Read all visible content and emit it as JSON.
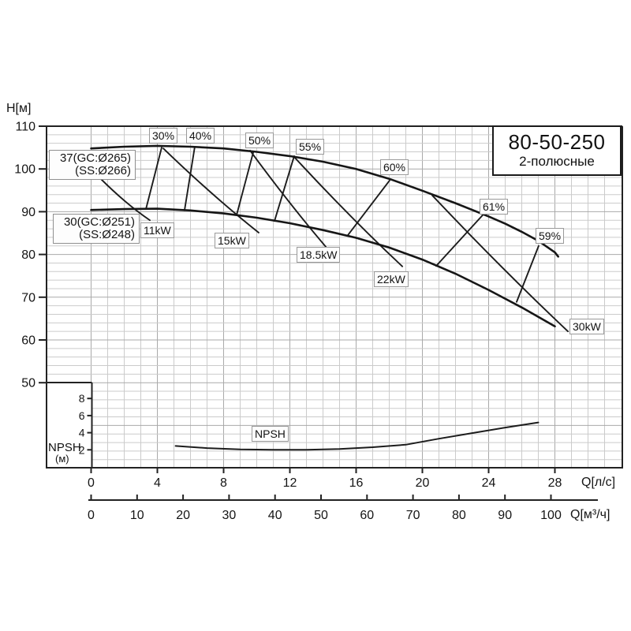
{
  "title_box": {
    "model": "80-50-250",
    "subtitle": "2-полюсные"
  },
  "axes": {
    "h": {
      "label": "H[м]",
      "ticks": [
        110,
        100,
        90,
        80,
        70,
        60,
        50
      ]
    },
    "q_ls": {
      "label": "Q[л/с]",
      "ticks": [
        0,
        4,
        8,
        12,
        16,
        20,
        24,
        28
      ]
    },
    "q_m3h": {
      "label": "Q[м³/ч]",
      "ticks": [
        0,
        10,
        20,
        30,
        40,
        50,
        60,
        70,
        80,
        90,
        100
      ]
    },
    "npsh": {
      "title": "NPSH",
      "unit": "(м)",
      "ticks": [
        2,
        4,
        6,
        8
      ]
    }
  },
  "chart_data": {
    "type": "line",
    "title": "80-50-250 2-полюсные",
    "xlabel": "Q [л/с] (second scale: Q [м³/ч])",
    "ylabel": "H [м]",
    "x_range_ls": [
      0,
      32
    ],
    "h_range": [
      30,
      110
    ],
    "grid": true,
    "series": [
      {
        "name": "37(GC:Ø265)(SS:Ø266)",
        "label_lines": [
          "37(GC:Ø265)",
          "(SS:Ø266)"
        ],
        "points": [
          [
            0,
            104.8
          ],
          [
            2,
            105.2
          ],
          [
            4,
            105.4
          ],
          [
            6,
            105.2
          ],
          [
            8,
            104.8
          ],
          [
            10,
            104.0
          ],
          [
            12,
            103.0
          ],
          [
            14,
            101.7
          ],
          [
            16,
            100.0
          ],
          [
            18,
            97.7
          ],
          [
            20,
            94.9
          ],
          [
            22,
            92.0
          ],
          [
            24,
            88.9
          ],
          [
            25,
            87.2
          ],
          [
            26,
            85.3
          ],
          [
            27,
            83.2
          ],
          [
            28,
            80.5
          ],
          [
            28.2,
            79.5
          ]
        ]
      },
      {
        "name": "30(GC:Ø251)(SS:Ø248)",
        "label_lines": [
          "30(GC:Ø251)",
          "(SS:Ø248)"
        ],
        "points": [
          [
            0,
            90.4
          ],
          [
            2,
            90.6
          ],
          [
            4,
            90.7
          ],
          [
            6,
            90.3
          ],
          [
            8,
            89.6
          ],
          [
            10,
            88.6
          ],
          [
            12,
            87.3
          ],
          [
            14,
            85.7
          ],
          [
            16,
            83.9
          ],
          [
            18,
            81.6
          ],
          [
            20,
            78.8
          ],
          [
            22,
            75.5
          ],
          [
            24,
            71.7
          ],
          [
            26,
            67.6
          ],
          [
            28,
            63.2
          ]
        ]
      },
      {
        "name": "NPSH",
        "points_npsh": [
          [
            5.1,
            2.45
          ],
          [
            7,
            2.2
          ],
          [
            9,
            2.05
          ],
          [
            11,
            2.0
          ],
          [
            13,
            2.0
          ],
          [
            15,
            2.1
          ],
          [
            17,
            2.3
          ],
          [
            19,
            2.6
          ],
          [
            21,
            3.3
          ],
          [
            23,
            3.95
          ],
          [
            25,
            4.6
          ],
          [
            26.5,
            5.05
          ],
          [
            27,
            5.2
          ]
        ]
      }
    ],
    "efficiency_lines": [
      {
        "label": "30%",
        "from": [
          4.26,
          105.0
        ],
        "to": [
          3.31,
          90.6
        ]
      },
      {
        "label": "40%",
        "from": [
          6.26,
          105.2
        ],
        "to": [
          5.64,
          90.3
        ]
      },
      {
        "label": "50%",
        "from": [
          9.79,
          103.9
        ],
        "to": [
          8.79,
          89.3
        ]
      },
      {
        "label": "55%",
        "from": [
          12.26,
          103.0
        ],
        "to": [
          11.07,
          87.8
        ]
      },
      {
        "label": "60%",
        "from": [
          18.02,
          97.3
        ],
        "to": [
          15.5,
          84.5
        ]
      },
      {
        "label": "61%",
        "from": [
          23.64,
          89.2
        ],
        "to": [
          20.83,
          77.3
        ]
      },
      {
        "label": "59%",
        "from": [
          27.02,
          82.0
        ],
        "to": [
          25.69,
          68.9
        ]
      }
    ],
    "power_lines": [
      {
        "label": "11kW",
        "from": [
          0.45,
          98.2
        ],
        "to": [
          3.55,
          88.0
        ]
      },
      {
        "label": "15kW",
        "from": [
          4.36,
          104.8
        ],
        "to": [
          10.12,
          85.1
        ]
      },
      {
        "label": "18.5kW",
        "from": [
          9.6,
          104.3
        ],
        "to": [
          14.17,
          81.8
        ]
      },
      {
        "label": "22kW",
        "from": [
          12.26,
          102.8
        ],
        "to": [
          18.79,
          77.2
        ]
      },
      {
        "label": "30kW",
        "from": [
          20.6,
          93.8
        ],
        "to": [
          28.79,
          62.0
        ]
      }
    ]
  }
}
